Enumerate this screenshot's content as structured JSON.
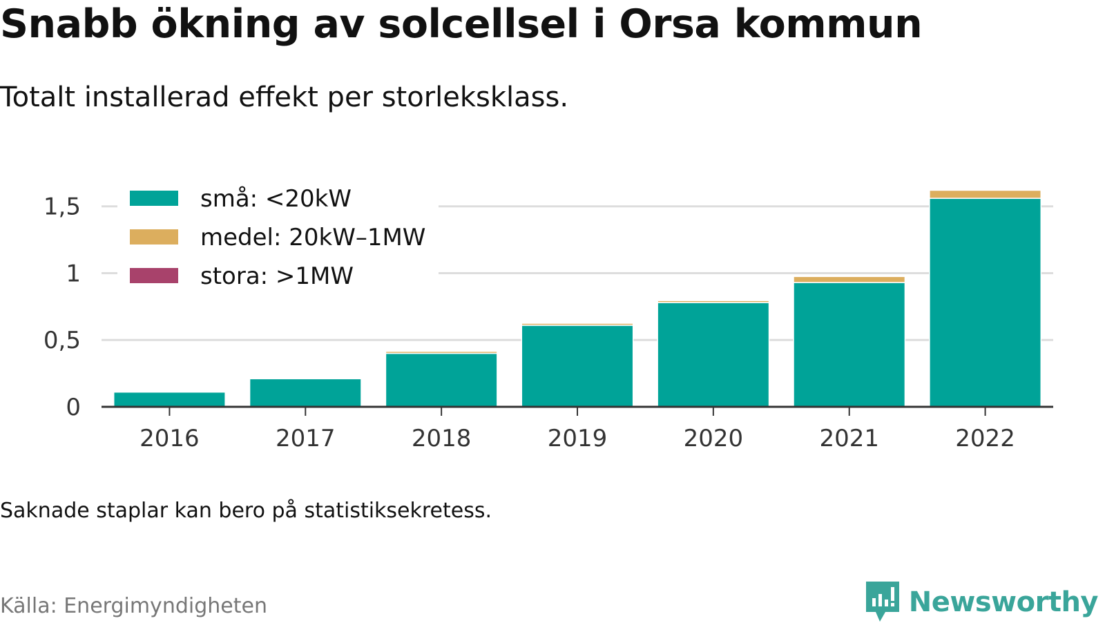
{
  "title": "Snabb ökning av solcellsel i Orsa kommun",
  "subtitle": "Totalt installerad effekt per storleksklass.",
  "note": "Saknade staplar kan bero på statistiksekretess.",
  "source": "Källa: Energimyndigheten",
  "brand": {
    "name": "Newsworthy",
    "icon": "newsworthy-logo-icon",
    "color": "#3aa59a"
  },
  "chart_data": {
    "type": "bar",
    "stacked": true,
    "categories": [
      "2016",
      "2017",
      "2018",
      "2019",
      "2020",
      "2021",
      "2022"
    ],
    "series": [
      {
        "name": "små: <20kW",
        "color": "#00a398",
        "values": [
          0.11,
          0.21,
          0.4,
          0.61,
          0.78,
          0.93,
          1.56
        ]
      },
      {
        "name": "medel: 20kW–1MW",
        "color": "#dcae5e",
        "values": [
          0.0,
          0.0,
          0.015,
          0.015,
          0.015,
          0.045,
          0.06
        ]
      },
      {
        "name": "stora: >1MW",
        "color": "#a8426b",
        "values": [
          0,
          0,
          0,
          0,
          0,
          0,
          0
        ]
      }
    ],
    "yticks": [
      0,
      0.5,
      1,
      1.5
    ],
    "ytick_labels": [
      "0",
      "0,5",
      "1",
      "1,5"
    ],
    "ylim": [
      0,
      1.7
    ],
    "grid": true,
    "legend_position": "top-left",
    "xlabel": "",
    "ylabel": ""
  }
}
